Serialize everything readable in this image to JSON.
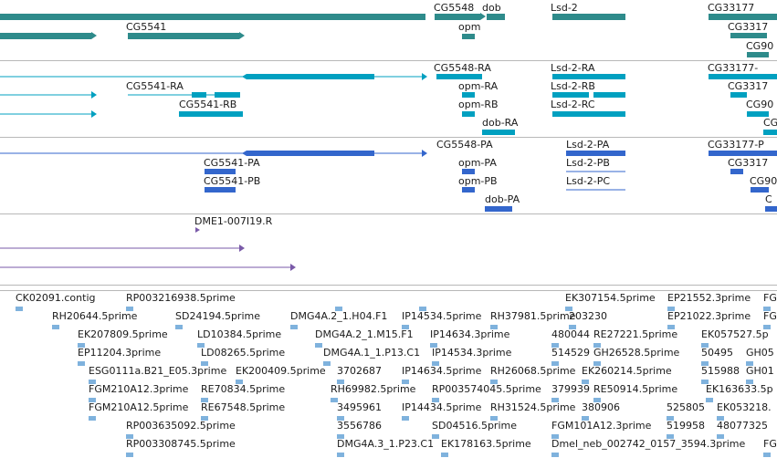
{
  "colors": {
    "gene": "#2e8b8b",
    "transcript": "#00a0c0",
    "protein": "#3366cc",
    "cdna": "#7a5aa8",
    "est": "#7fb2dd",
    "border": "#b8b8b8"
  },
  "tracks": [
    {
      "id": "genes",
      "labels": [
        "CG5548",
        "dob",
        "Lsd-2",
        "CG33177",
        "CG5541",
        "opm",
        "CG3317",
        "CG90"
      ]
    },
    {
      "id": "transcripts",
      "labels": [
        "CG5548-RA",
        "Lsd-2-RA",
        "CG33177-",
        "CG5541-RA",
        "opm-RA",
        "Lsd-2-RB",
        "CG3317",
        "CG5541-RB",
        "opm-RB",
        "Lsd-2-RC",
        "CG90",
        "dob-RA",
        "CG"
      ]
    },
    {
      "id": "proteins",
      "labels": [
        "CG5548-PA",
        "Lsd-2-PA",
        "CG33177-P",
        "CG5541-PA",
        "opm-PA",
        "Lsd-2-PB",
        "CG3317",
        "CG5541-PB",
        "opm-PB",
        "Lsd-2-PC",
        "CG90",
        "dob-PA",
        "C"
      ]
    },
    {
      "id": "cdna",
      "labels": [
        "DME1-007I19.R"
      ]
    },
    {
      "id": "ests",
      "labels": [
        "CK02091.contig",
        "RP003216938.5prime",
        "EK307154.5prime",
        "EP21552.3prime",
        "FG",
        "RH20644.5prime",
        "SD24194.5prime",
        "DMG4A.2_1.H04.F1",
        "IP14534.5prime",
        "RH37981.5prime",
        "203230",
        "EP21022.3prime",
        "FG",
        "EK207809.5prime",
        "DMG4A.2_1.M15.F1",
        "IP14634.3prime",
        "480044",
        "RE27221.5prime",
        "EK057527.5p",
        "LD10384.5prime",
        "EP11204.3prime",
        "LD08265.5prime",
        "DMG4A.1_1.P13.C1",
        "IP14534.3prime",
        "514529",
        "GH26528.5prime",
        "50495",
        "GH05",
        "ESG0111a.B21_E05.3prime",
        "EK200409.5prime",
        "3702687",
        "IP14634.5prime",
        "RH26068.5prime",
        "EK260214.5prime",
        "515988",
        "GH01",
        "FGM210A12.3prime",
        "RE70834.5prime",
        "RH69982.5prime",
        "RP003574045.5prime",
        "379939",
        "RE50914.5prime",
        "EK163633.5p",
        "FGM210A12.5prime",
        "RE67548.5prime",
        "3495961",
        "IP14434.5prime",
        "RH31524.5prime",
        "380906",
        "525805",
        "EK053218.",
        "RP003635092.5prime",
        "3556786",
        "SD04516.5prime",
        "FGM101A12.3prime",
        "519958",
        "48077325",
        "RP003308745.5prime",
        "DMG4A.3_1.P23.C1",
        "EK178163.5prime",
        "Dmel_neb_002742_0157_3594.3prime",
        "FG"
      ]
    }
  ]
}
